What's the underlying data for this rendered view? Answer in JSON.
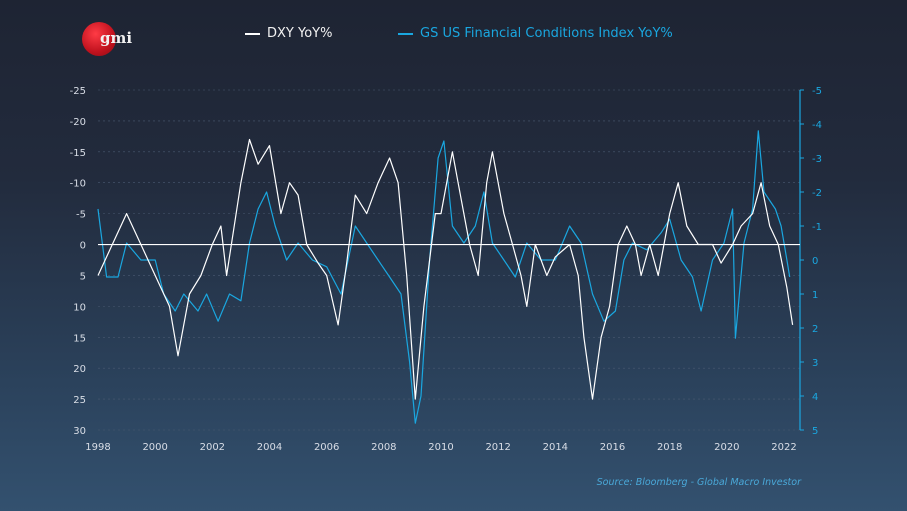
{
  "logo": {
    "text": "gmi",
    "color": "#d21a26"
  },
  "legend": [
    {
      "label": "DXY YoY%",
      "color": "#ffffff"
    },
    {
      "label": "GS US Financial Conditions Index YoY%",
      "color": "#1aa7e0"
    }
  ],
  "source": "Source: Bloomberg - Global Macro Investor",
  "chart_data": {
    "type": "line",
    "title": "",
    "grid": true,
    "x_ticks": [
      "1998",
      "2000",
      "2002",
      "2004",
      "2006",
      "2008",
      "2010",
      "2012",
      "2014",
      "2016",
      "2018",
      "2020",
      "2022"
    ],
    "xlim": [
      1998,
      2022.6
    ],
    "left_axis": {
      "ylim": [
        -25,
        30
      ],
      "inverted": true,
      "ticks": [
        "-25",
        "-20",
        "-15",
        "-10",
        "-5",
        "0",
        "5",
        "10",
        "15",
        "20",
        "25",
        "30"
      ]
    },
    "right_axis": {
      "ylim": [
        -5,
        5
      ],
      "inverted": true,
      "ticks": [
        "-5",
        "-4",
        "-3",
        "-2",
        "-1",
        "0",
        "1",
        "2",
        "3",
        "4",
        "5"
      ]
    },
    "series": [
      {
        "name": "DXY YoY%",
        "axis": "left",
        "color": "#ffffff",
        "x": [
          1998.0,
          1998.5,
          1999.0,
          1999.5,
          2000.0,
          2000.5,
          2000.8,
          2001.2,
          2001.6,
          2002.0,
          2002.3,
          2002.5,
          2003.0,
          2003.3,
          2003.6,
          2004.0,
          2004.4,
          2004.7,
          2005.0,
          2005.3,
          2005.7,
          2006.0,
          2006.4,
          2006.7,
          2007.0,
          2007.4,
          2007.8,
          2008.2,
          2008.5,
          2008.8,
          2009.1,
          2009.4,
          2009.8,
          2010.0,
          2010.4,
          2010.6,
          2011.0,
          2011.3,
          2011.6,
          2011.8,
          2012.2,
          2012.5,
          2012.8,
          2013.0,
          2013.3,
          2013.7,
          2014.0,
          2014.5,
          2014.8,
          2015.0,
          2015.3,
          2015.6,
          2015.9,
          2016.2,
          2016.5,
          2016.8,
          2017.0,
          2017.3,
          2017.6,
          2018.0,
          2018.3,
          2018.6,
          2019.0,
          2019.5,
          2019.8,
          2020.2,
          2020.5,
          2020.9,
          2021.2,
          2021.5,
          2021.8,
          2022.1,
          2022.3
        ],
        "y": [
          5,
          0,
          -5,
          0,
          5,
          10,
          18,
          8,
          5,
          0,
          -3,
          5,
          -10,
          -17,
          -13,
          -16,
          -5,
          -10,
          -8,
          0,
          3,
          5,
          13,
          3,
          -8,
          -5,
          -10,
          -14,
          -10,
          5,
          25,
          10,
          -5,
          -5,
          -15,
          -10,
          0,
          5,
          -10,
          -15,
          -5,
          0,
          5,
          10,
          0,
          5,
          2,
          0,
          5,
          15,
          25,
          15,
          10,
          0,
          -3,
          0,
          5,
          0,
          5,
          -5,
          -10,
          -3,
          0,
          0,
          3,
          0,
          -3,
          -5,
          -10,
          -3,
          0,
          7,
          13
        ]
      },
      {
        "name": "GS US Financial Conditions Index YoY%",
        "axis": "right",
        "color": "#1aa7e0",
        "x": [
          1998.0,
          1998.3,
          1998.7,
          1999.0,
          1999.5,
          2000.0,
          2000.3,
          2000.7,
          2001.0,
          2001.5,
          2001.8,
          2002.2,
          2002.6,
          2003.0,
          2003.3,
          2003.6,
          2003.9,
          2004.2,
          2004.6,
          2005.0,
          2005.5,
          2006.0,
          2006.5,
          2007.0,
          2007.4,
          2007.8,
          2008.2,
          2008.6,
          2008.9,
          2009.1,
          2009.3,
          2009.6,
          2009.9,
          2010.1,
          2010.4,
          2010.8,
          2011.2,
          2011.5,
          2011.8,
          2012.2,
          2012.6,
          2013.0,
          2013.5,
          2014.0,
          2014.5,
          2014.9,
          2015.3,
          2015.7,
          2016.1,
          2016.4,
          2016.7,
          2017.2,
          2017.7,
          2018.0,
          2018.4,
          2018.8,
          2019.1,
          2019.5,
          2019.9,
          2020.2,
          2020.3,
          2020.6,
          2020.9,
          2021.1,
          2021.3,
          2021.7,
          2021.9,
          2022.1,
          2022.2
        ],
        "y": [
          -1.5,
          0.5,
          0.5,
          -0.5,
          0,
          0,
          1,
          1.5,
          1,
          1.5,
          1,
          1.8,
          1.0,
          1.2,
          -0.5,
          -1.5,
          -2,
          -1,
          0,
          -0.5,
          0,
          0.2,
          1,
          -1,
          -0.5,
          0,
          0.5,
          1,
          3,
          4.8,
          4,
          0,
          -3,
          -3.5,
          -1,
          -0.5,
          -1,
          -2,
          -0.5,
          0,
          0.5,
          -0.5,
          0,
          0,
          -1,
          -0.5,
          1,
          1.8,
          1.5,
          0,
          -0.5,
          -0.3,
          -0.8,
          -1.2,
          0,
          0.5,
          1.5,
          0,
          -0.5,
          -1.5,
          2.3,
          -0.5,
          -1.5,
          -3.8,
          -2,
          -1.5,
          -1,
          0,
          0.5
        ]
      }
    ]
  }
}
